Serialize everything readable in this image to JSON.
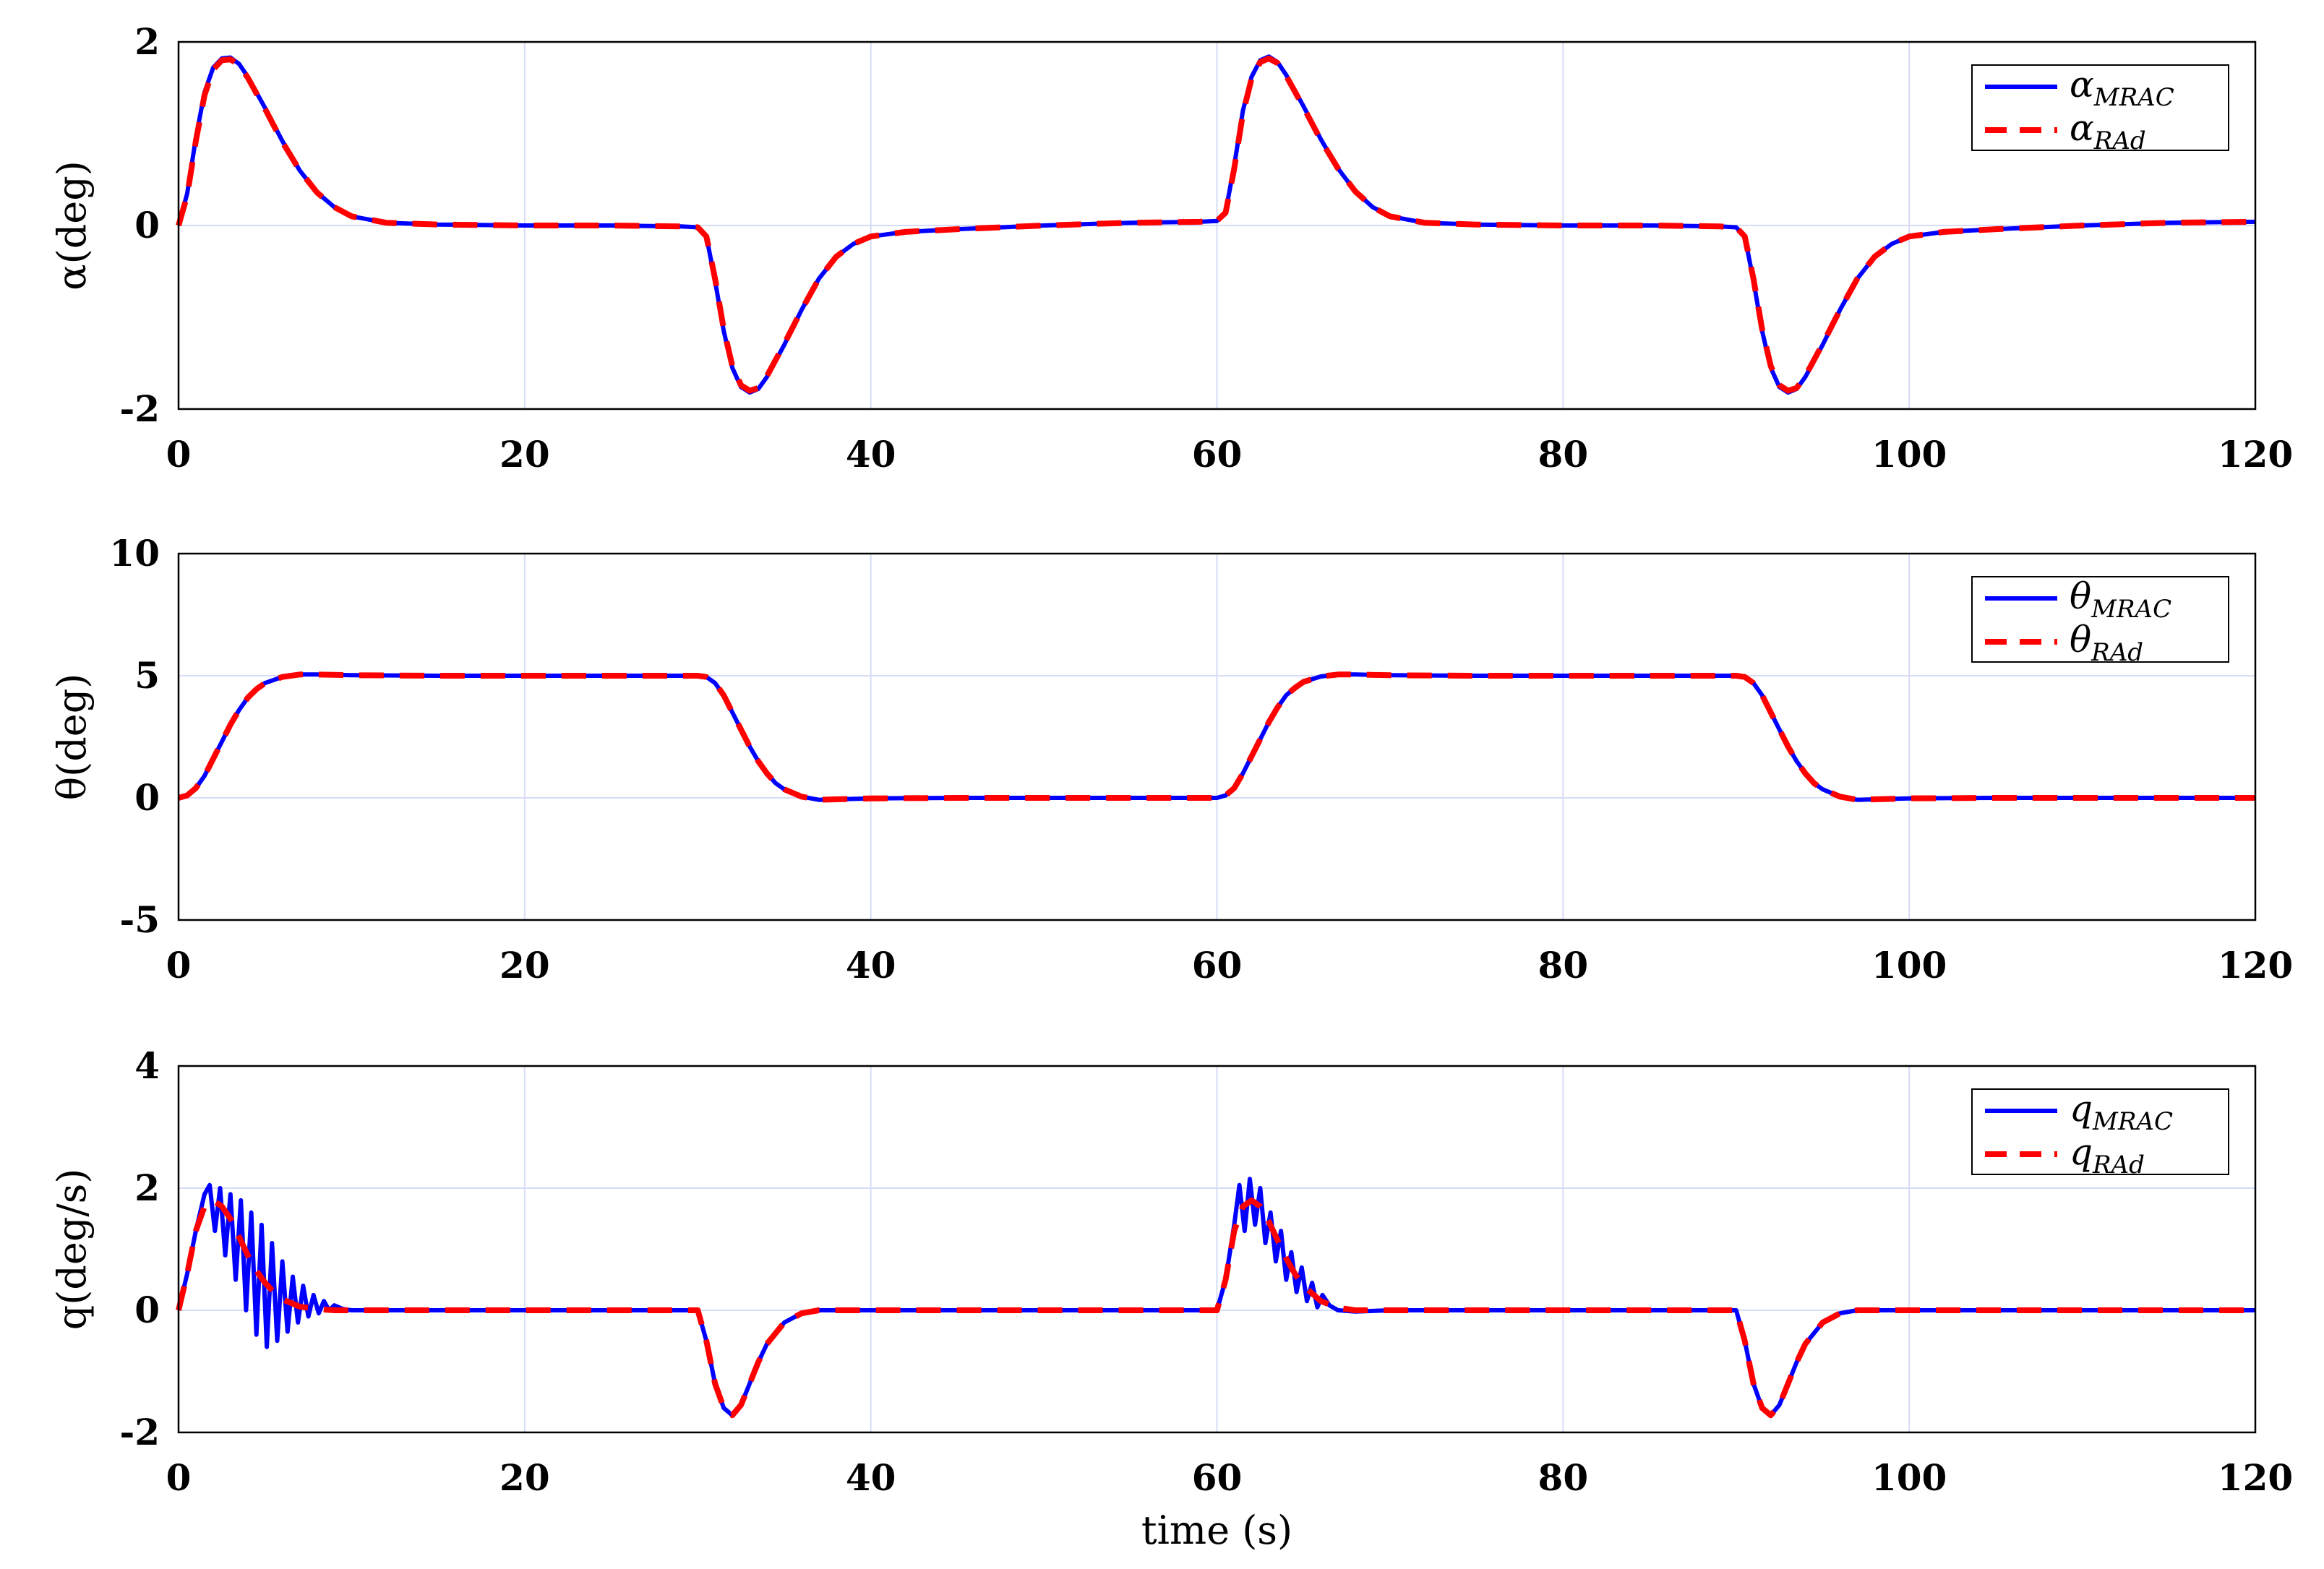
{
  "chart_data": [
    {
      "type": "line",
      "ylabel": "α(deg)",
      "xlim": [
        0,
        120
      ],
      "ylim": [
        -2,
        2
      ],
      "xticks": [
        "0",
        "20",
        "40",
        "60",
        "80",
        "100",
        "120"
      ],
      "yticks": [
        "-2",
        "0",
        "2"
      ],
      "grid": true,
      "legend_position": "top-right",
      "series": [
        {
          "name": "α_MRAC",
          "color": "#0000ff",
          "style": "solid",
          "x": [
            0,
            0.5,
            1,
            1.5,
            2,
            2.5,
            3,
            3.5,
            4,
            5,
            6,
            7,
            8,
            9,
            10,
            12,
            15,
            20,
            25,
            29,
            30,
            30.5,
            31,
            31.5,
            32,
            32.5,
            33,
            33.5,
            34,
            35,
            36,
            37,
            38,
            39,
            40,
            42,
            45,
            50,
            55,
            59,
            60,
            60.5,
            61,
            61.5,
            62,
            62.5,
            63,
            63.5,
            64,
            65,
            66,
            67,
            68,
            69,
            70,
            72,
            75,
            80,
            85,
            89,
            90,
            90.5,
            91,
            91.5,
            92,
            92.5,
            93,
            93.5,
            94,
            95,
            96,
            97,
            98,
            99,
            100,
            102,
            105,
            110,
            115,
            120
          ],
          "y": [
            0,
            0.35,
            0.95,
            1.45,
            1.72,
            1.82,
            1.83,
            1.76,
            1.62,
            1.28,
            0.92,
            0.6,
            0.36,
            0.2,
            0.1,
            0.03,
            0.01,
            0,
            0,
            -0.01,
            -0.02,
            -0.12,
            -0.6,
            -1.15,
            -1.55,
            -1.76,
            -1.82,
            -1.78,
            -1.65,
            -1.3,
            -0.92,
            -0.58,
            -0.34,
            -0.2,
            -0.12,
            -0.07,
            -0.04,
            0,
            0.03,
            0.04,
            0.05,
            0.15,
            0.65,
            1.25,
            1.62,
            1.8,
            1.84,
            1.78,
            1.64,
            1.3,
            0.94,
            0.62,
            0.37,
            0.2,
            0.1,
            0.03,
            0.01,
            0,
            0,
            -0.01,
            -0.02,
            -0.12,
            -0.6,
            -1.15,
            -1.55,
            -1.76,
            -1.82,
            -1.78,
            -1.65,
            -1.3,
            -0.92,
            -0.58,
            -0.34,
            -0.2,
            -0.12,
            -0.07,
            -0.04,
            0,
            0.03,
            0.04
          ]
        },
        {
          "name": "α_RAd",
          "color": "#ff0000",
          "style": "dashed",
          "x": [
            0,
            0.5,
            1,
            1.5,
            2,
            2.5,
            3,
            3.5,
            4,
            5,
            6,
            7,
            8,
            9,
            10,
            12,
            15,
            20,
            25,
            29,
            30,
            30.5,
            31,
            31.5,
            32,
            32.5,
            33,
            33.5,
            34,
            35,
            36,
            37,
            38,
            39,
            40,
            42,
            45,
            50,
            55,
            59,
            60,
            60.5,
            61,
            61.5,
            62,
            62.5,
            63,
            63.5,
            64,
            65,
            66,
            67,
            68,
            69,
            70,
            72,
            75,
            80,
            85,
            89,
            90,
            90.5,
            91,
            91.5,
            92,
            92.5,
            93,
            93.5,
            94,
            95,
            96,
            97,
            98,
            99,
            100,
            102,
            105,
            110,
            115,
            120
          ],
          "y": [
            0,
            0.33,
            0.92,
            1.42,
            1.7,
            1.8,
            1.81,
            1.75,
            1.61,
            1.27,
            0.91,
            0.6,
            0.36,
            0.2,
            0.1,
            0.03,
            0.01,
            0,
            0,
            -0.01,
            -0.02,
            -0.12,
            -0.58,
            -1.13,
            -1.53,
            -1.74,
            -1.8,
            -1.77,
            -1.64,
            -1.29,
            -0.92,
            -0.58,
            -0.34,
            -0.2,
            -0.12,
            -0.07,
            -0.04,
            0,
            0.03,
            0.04,
            0.05,
            0.14,
            0.62,
            1.22,
            1.6,
            1.78,
            1.82,
            1.77,
            1.63,
            1.29,
            0.93,
            0.62,
            0.37,
            0.2,
            0.1,
            0.03,
            0.01,
            0,
            0,
            -0.01,
            -0.02,
            -0.12,
            -0.58,
            -1.13,
            -1.53,
            -1.74,
            -1.8,
            -1.77,
            -1.64,
            -1.29,
            -0.92,
            -0.58,
            -0.34,
            -0.2,
            -0.12,
            -0.07,
            -0.04,
            0,
            0.03,
            0.04
          ]
        }
      ]
    },
    {
      "type": "line",
      "ylabel": "θ(deg)",
      "xlim": [
        0,
        120
      ],
      "ylim": [
        -5,
        10
      ],
      "xticks": [
        "0",
        "20",
        "40",
        "60",
        "80",
        "100",
        "120"
      ],
      "yticks": [
        "-5",
        "0",
        "5",
        "10"
      ],
      "grid": true,
      "legend_position": "top-right",
      "series": [
        {
          "name": "θ_MRAC",
          "color": "#0000ff",
          "style": "solid",
          "x": [
            0,
            0.5,
            1,
            1.5,
            2,
            2.5,
            3,
            3.5,
            4,
            4.5,
            5,
            6,
            7,
            8,
            10,
            15,
            20,
            25,
            29,
            30,
            30.5,
            31,
            31.5,
            32,
            32.5,
            33,
            33.5,
            34,
            34.5,
            35,
            36,
            37,
            38,
            40,
            45,
            50,
            55,
            59,
            60,
            60.5,
            61,
            61.5,
            62,
            62.5,
            63,
            63.5,
            64,
            64.5,
            65,
            66,
            67,
            68,
            70,
            75,
            80,
            85,
            89,
            90,
            90.5,
            91,
            91.5,
            92,
            92.5,
            93,
            93.5,
            94,
            94.5,
            95,
            96,
            97,
            98,
            100,
            105,
            110,
            115,
            120
          ],
          "y": [
            0,
            0.1,
            0.4,
            0.9,
            1.6,
            2.3,
            3.0,
            3.6,
            4.1,
            4.45,
            4.7,
            4.95,
            5.05,
            5.05,
            5.02,
            5.0,
            5.0,
            5.0,
            5.0,
            5.0,
            4.95,
            4.7,
            4.2,
            3.5,
            2.8,
            2.1,
            1.5,
            1.0,
            0.6,
            0.35,
            0.05,
            -0.08,
            -0.06,
            -0.02,
            0,
            0,
            0,
            0,
            0,
            0.1,
            0.4,
            1.0,
            1.7,
            2.4,
            3.1,
            3.7,
            4.2,
            4.5,
            4.75,
            4.97,
            5.05,
            5.05,
            5.02,
            5.0,
            5.0,
            5.0,
            5.0,
            5.0,
            4.95,
            4.7,
            4.2,
            3.5,
            2.8,
            2.1,
            1.5,
            1.0,
            0.6,
            0.35,
            0.05,
            -0.08,
            -0.06,
            -0.02,
            0,
            0,
            0,
            0
          ]
        },
        {
          "name": "θ_RAd",
          "color": "#ff0000",
          "style": "dashed",
          "x": [
            0,
            0.5,
            1,
            1.5,
            2,
            2.5,
            3,
            3.5,
            4,
            4.5,
            5,
            6,
            7,
            8,
            10,
            15,
            20,
            25,
            29,
            30,
            30.5,
            31,
            31.5,
            32,
            32.5,
            33,
            33.5,
            34,
            34.5,
            35,
            36,
            37,
            38,
            40,
            45,
            50,
            55,
            59,
            60,
            60.5,
            61,
            61.5,
            62,
            62.5,
            63,
            63.5,
            64,
            64.5,
            65,
            66,
            67,
            68,
            70,
            75,
            80,
            85,
            89,
            90,
            90.5,
            91,
            91.5,
            92,
            92.5,
            93,
            93.5,
            94,
            94.5,
            95,
            96,
            97,
            98,
            100,
            105,
            110,
            115,
            120
          ],
          "y": [
            0,
            0.1,
            0.4,
            0.9,
            1.6,
            2.3,
            3.0,
            3.6,
            4.1,
            4.45,
            4.7,
            4.95,
            5.05,
            5.05,
            5.02,
            5.0,
            5.0,
            5.0,
            5.0,
            5.0,
            4.95,
            4.7,
            4.2,
            3.5,
            2.8,
            2.1,
            1.5,
            1.0,
            0.6,
            0.35,
            0.05,
            -0.08,
            -0.06,
            -0.02,
            0,
            0,
            0,
            0,
            0,
            0.1,
            0.4,
            1.0,
            1.7,
            2.4,
            3.1,
            3.7,
            4.2,
            4.5,
            4.75,
            4.97,
            5.05,
            5.05,
            5.02,
            5.0,
            5.0,
            5.0,
            5.0,
            5.0,
            4.95,
            4.7,
            4.2,
            3.5,
            2.8,
            2.1,
            1.5,
            1.0,
            0.6,
            0.35,
            0.05,
            -0.08,
            -0.06,
            -0.02,
            0,
            0,
            0,
            0
          ]
        }
      ]
    },
    {
      "type": "line",
      "ylabel": "q(deg/s)",
      "xlabel": "time (s)",
      "xlim": [
        0,
        120
      ],
      "ylim": [
        -2,
        4
      ],
      "xticks": [
        "0",
        "20",
        "40",
        "60",
        "80",
        "100",
        "120"
      ],
      "yticks": [
        "-2",
        "0",
        "2",
        "4"
      ],
      "grid": true,
      "legend_position": "top-right",
      "series": [
        {
          "name": "q_MRAC",
          "color": "#0000ff",
          "style": "solid",
          "x": [
            0,
            0.5,
            1,
            1.5,
            1.8,
            2.1,
            2.4,
            2.7,
            3.0,
            3.3,
            3.6,
            3.9,
            4.2,
            4.5,
            4.8,
            5.1,
            5.4,
            5.7,
            6.0,
            6.3,
            6.6,
            6.9,
            7.2,
            7.5,
            7.8,
            8.1,
            8.4,
            8.7,
            9.0,
            9.5,
            10,
            12,
            15,
            20,
            25,
            29,
            30,
            30.5,
            31,
            31.5,
            32,
            32.5,
            33,
            33.5,
            34,
            35,
            36,
            37,
            38,
            40,
            45,
            50,
            55,
            59,
            60,
            60.5,
            61,
            61.3,
            61.6,
            61.9,
            62.2,
            62.5,
            62.8,
            63.1,
            63.4,
            63.7,
            64.0,
            64.3,
            64.6,
            64.9,
            65.2,
            65.5,
            65.8,
            66.1,
            66.5,
            67,
            68,
            70,
            75,
            80,
            85,
            89,
            90,
            90.5,
            91,
            91.5,
            92,
            92.5,
            93,
            93.5,
            94,
            95,
            96,
            97,
            98,
            100,
            105,
            110,
            115,
            120
          ],
          "y": [
            0,
            0.6,
            1.3,
            1.9,
            2.05,
            1.3,
            2.0,
            0.9,
            1.9,
            0.5,
            1.8,
            0.0,
            1.6,
            -0.4,
            1.4,
            -0.6,
            1.1,
            -0.5,
            0.8,
            -0.35,
            0.55,
            -0.2,
            0.4,
            -0.1,
            0.25,
            -0.05,
            0.15,
            0.0,
            0.08,
            0.02,
            0.0,
            0.0,
            0.0,
            0.0,
            0.0,
            0.0,
            0.0,
            -0.5,
            -1.2,
            -1.6,
            -1.72,
            -1.55,
            -1.2,
            -0.85,
            -0.55,
            -0.2,
            -0.05,
            0.0,
            0.0,
            0.0,
            0.0,
            0.0,
            0.0,
            0.0,
            0.0,
            0.5,
            1.4,
            2.05,
            1.3,
            2.15,
            1.4,
            2.0,
            1.1,
            1.6,
            0.8,
            1.3,
            0.5,
            0.95,
            0.3,
            0.7,
            0.15,
            0.45,
            0.05,
            0.25,
            0.08,
            0.0,
            -0.02,
            0.0,
            0.0,
            0.0,
            0.0,
            0.0,
            0.0,
            -0.5,
            -1.2,
            -1.6,
            -1.72,
            -1.55,
            -1.2,
            -0.85,
            -0.55,
            -0.2,
            -0.05,
            0.0,
            0.0,
            0.0,
            0.0,
            0.0,
            0.0,
            0.0
          ]
        },
        {
          "name": "q_RAd",
          "color": "#ff0000",
          "style": "dashed",
          "x": [
            0,
            0.5,
            1,
            1.5,
            2,
            2.5,
            3,
            3.5,
            4,
            4.5,
            5,
            5.5,
            6,
            7,
            8,
            9,
            10,
            12,
            15,
            20,
            25,
            29,
            30,
            30.5,
            31,
            31.5,
            32,
            32.5,
            33,
            33.5,
            34,
            35,
            36,
            37,
            38,
            40,
            45,
            50,
            55,
            59,
            60,
            60.5,
            61,
            61.5,
            62,
            62.5,
            63,
            63.5,
            64,
            64.5,
            65,
            66,
            67,
            68,
            70,
            75,
            80,
            85,
            89,
            90,
            90.5,
            91,
            91.5,
            92,
            92.5,
            93,
            93.5,
            94,
            95,
            96,
            97,
            98,
            100,
            105,
            110,
            115,
            120
          ],
          "y": [
            0,
            0.6,
            1.3,
            1.7,
            1.8,
            1.7,
            1.5,
            1.2,
            0.9,
            0.65,
            0.45,
            0.3,
            0.18,
            0.06,
            0.02,
            0.0,
            0.0,
            0.0,
            0.0,
            0.0,
            0.0,
            0.0,
            0.0,
            -0.5,
            -1.2,
            -1.6,
            -1.72,
            -1.55,
            -1.2,
            -0.85,
            -0.55,
            -0.2,
            -0.05,
            0.0,
            0.0,
            0.0,
            0.0,
            0.0,
            0.0,
            0.0,
            0.0,
            0.5,
            1.3,
            1.7,
            1.8,
            1.7,
            1.45,
            1.15,
            0.85,
            0.6,
            0.4,
            0.15,
            0.04,
            0.0,
            0.0,
            0.0,
            0.0,
            0.0,
            0.0,
            0.0,
            -0.5,
            -1.2,
            -1.6,
            -1.72,
            -1.55,
            -1.2,
            -0.85,
            -0.55,
            -0.2,
            -0.05,
            0.0,
            0.0,
            0.0,
            0.0,
            0.0,
            0.0,
            0.0
          ]
        }
      ]
    }
  ]
}
